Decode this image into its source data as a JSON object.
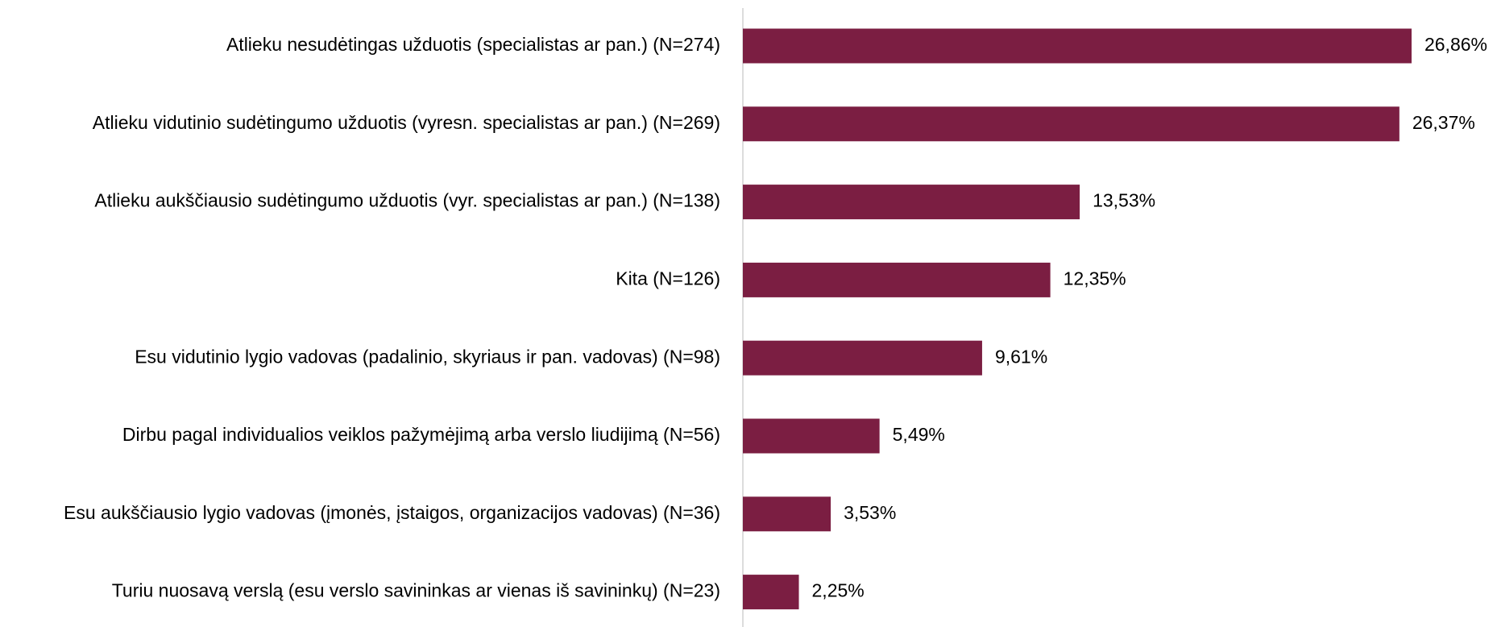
{
  "chart_data": {
    "type": "bar",
    "orientation": "horizontal",
    "color": "#7b1e42",
    "categories": [
      "Atlieku nesudėtingas užduotis (specialistas ar pan.) (N=274)",
      "Atlieku vidutinio sudėtingumo užduotis (vyresn. specialistas ar pan.) (N=269)",
      "Atlieku aukščiausio sudėtingumo užduotis (vyr. specialistas ar pan.) (N=138)",
      "Kita (N=126)",
      "Esu vidutinio lygio vadovas (padalinio, skyriaus ir pan. vadovas) (N=98)",
      "Dirbu pagal individualios veiklos pažymėjimą arba verslo liudijimą (N=56)",
      "Esu aukščiausio lygio vadovas (įmonės, įstaigos, organizacijos vadovas) (N=36)",
      "Turiu nuosavą verslą (esu verslo savininkas ar vienas iš savininkų) (N=23)"
    ],
    "values": [
      26.86,
      26.37,
      13.53,
      12.35,
      9.61,
      5.49,
      3.53,
      2.25
    ],
    "value_labels": [
      "26,86%",
      "26,37%",
      "13,53%",
      "12,35%",
      "9,61%",
      "5,49%",
      "3,53%",
      "2,25%"
    ]
  }
}
